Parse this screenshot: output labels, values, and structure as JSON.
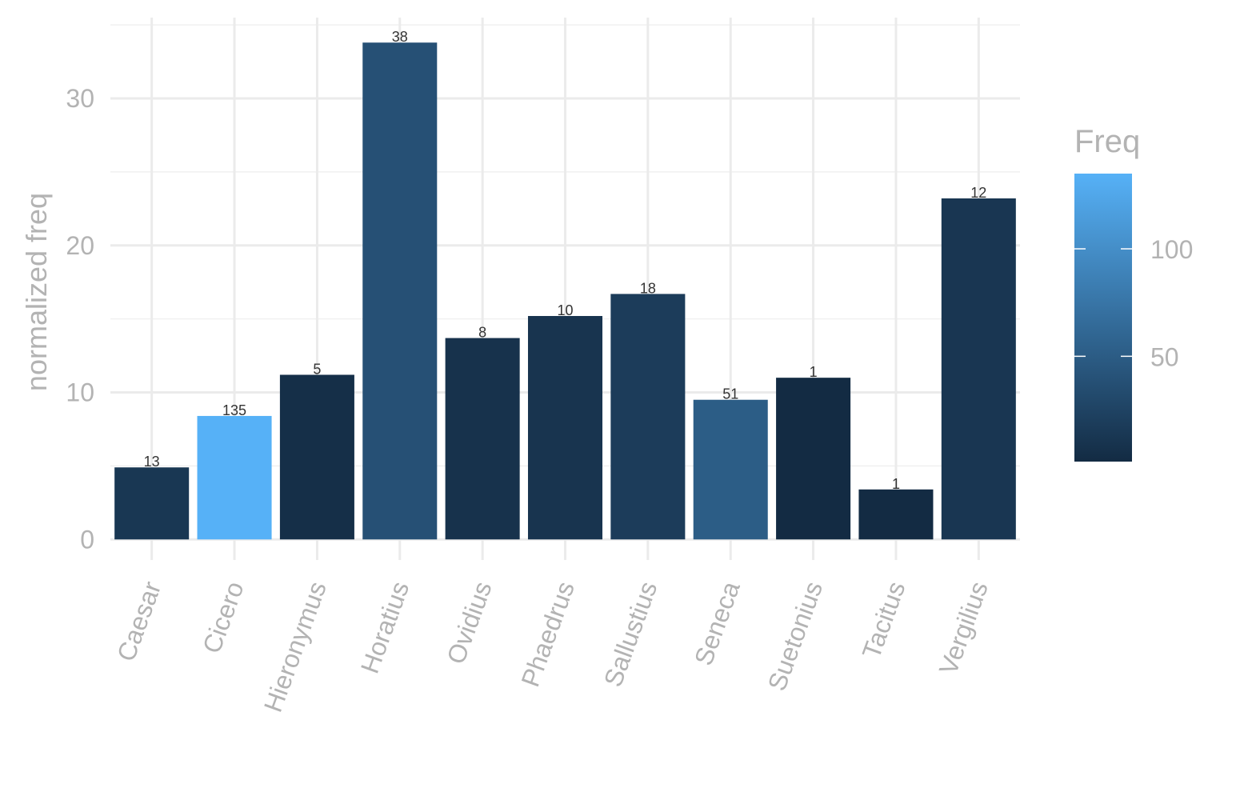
{
  "chart_data": {
    "type": "bar",
    "title": "",
    "xlabel": "",
    "ylabel": "normalized freq",
    "ylim": [
      -1.4,
      35.5
    ],
    "yticks": [
      0,
      10,
      20,
      30
    ],
    "grid": true,
    "categories": [
      "Caesar",
      "Cicero",
      "Hieronymus",
      "Horatius",
      "Ovidius",
      "Phaedrus",
      "Sallustius",
      "Seneca",
      "Suetonius",
      "Tacitus",
      "Vergilius"
    ],
    "values": [
      4.9,
      8.4,
      11.2,
      33.8,
      13.7,
      15.2,
      16.7,
      9.5,
      11.0,
      3.4,
      23.2
    ],
    "labels": [
      "13",
      "135",
      "5",
      "38",
      "8",
      "10",
      "18",
      "51",
      "1",
      "1",
      "12"
    ],
    "fill_values": [
      13,
      135,
      5,
      38,
      8,
      10,
      18,
      51,
      1,
      1,
      12
    ],
    "legend": {
      "title": "Freq",
      "position": "right",
      "range": [
        1,
        135
      ],
      "ticks": [
        50,
        100
      ],
      "tick_labels": [
        "50",
        "100"
      ],
      "low_color": "#132B43",
      "high_color": "#56B1F7"
    }
  }
}
